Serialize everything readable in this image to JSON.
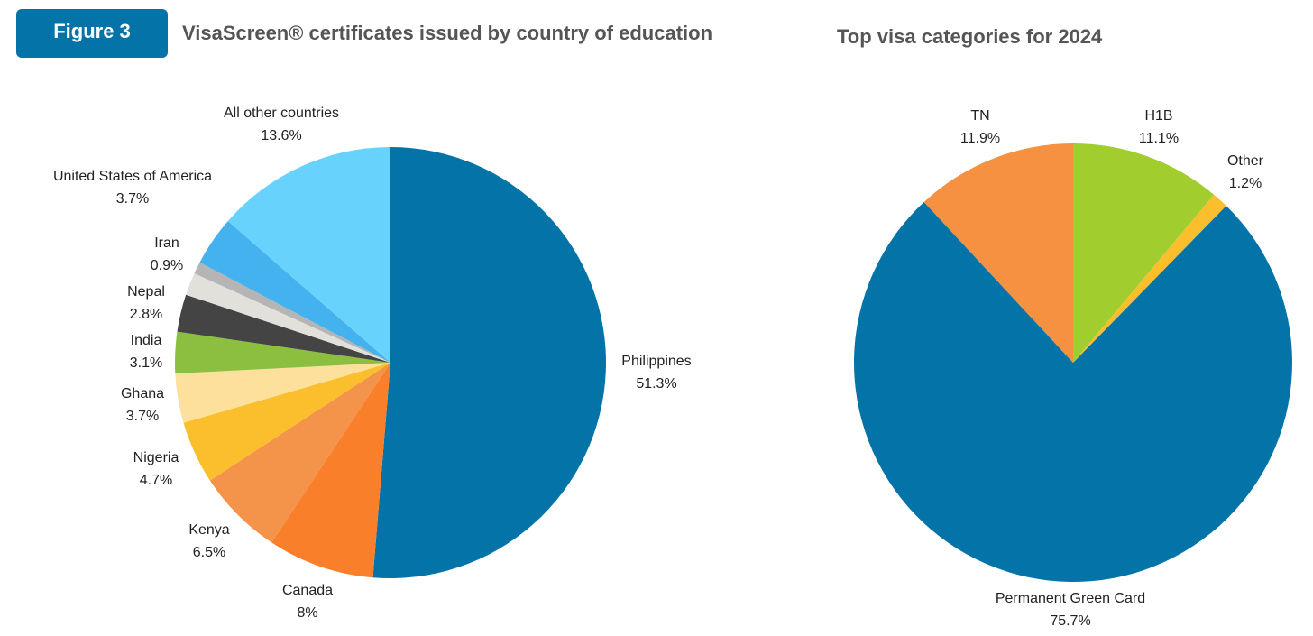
{
  "badge": "Figure 3",
  "chart_data": [
    {
      "type": "pie",
      "title": "VisaScreen® certificates issued by country of education",
      "categories": [
        "Philippines",
        "Canada",
        "Kenya",
        "Nigeria",
        "Ghana",
        "India",
        "Nepal",
        null,
        "Iran",
        "United States of America",
        "All other countries"
      ],
      "values": [
        51.3,
        8,
        6.5,
        4.7,
        3.7,
        3.1,
        2.8,
        1.7,
        0.9,
        3.7,
        13.6
      ],
      "value_labels": [
        "51.3%",
        "8%",
        "6.5%",
        "4.7%",
        "3.7%",
        "3.1%",
        "2.8%",
        null,
        "0.9%",
        "3.7%",
        "13.6%"
      ],
      "colors": [
        "#0474a8",
        "#fa7f2b",
        "#f4934a",
        "#fbbf2d",
        "#fde09b",
        "#8cbf3f",
        "#444444",
        "#e1e0da",
        "#b5b5b5",
        "#43b2ef",
        "#67d2fb"
      ]
    },
    {
      "type": "pie",
      "title": "Top visa categories for 2024",
      "categories": [
        "H1B",
        "Other",
        "Permanent Green Card",
        "TN"
      ],
      "values": [
        11.1,
        1.2,
        75.7,
        11.9
      ],
      "value_labels": [
        "11.1%",
        "1.2%",
        "75.7%",
        "11.9%"
      ],
      "colors": [
        "#a2cd2f",
        "#fbbf2d",
        "#0474a8",
        "#f59140"
      ]
    }
  ]
}
